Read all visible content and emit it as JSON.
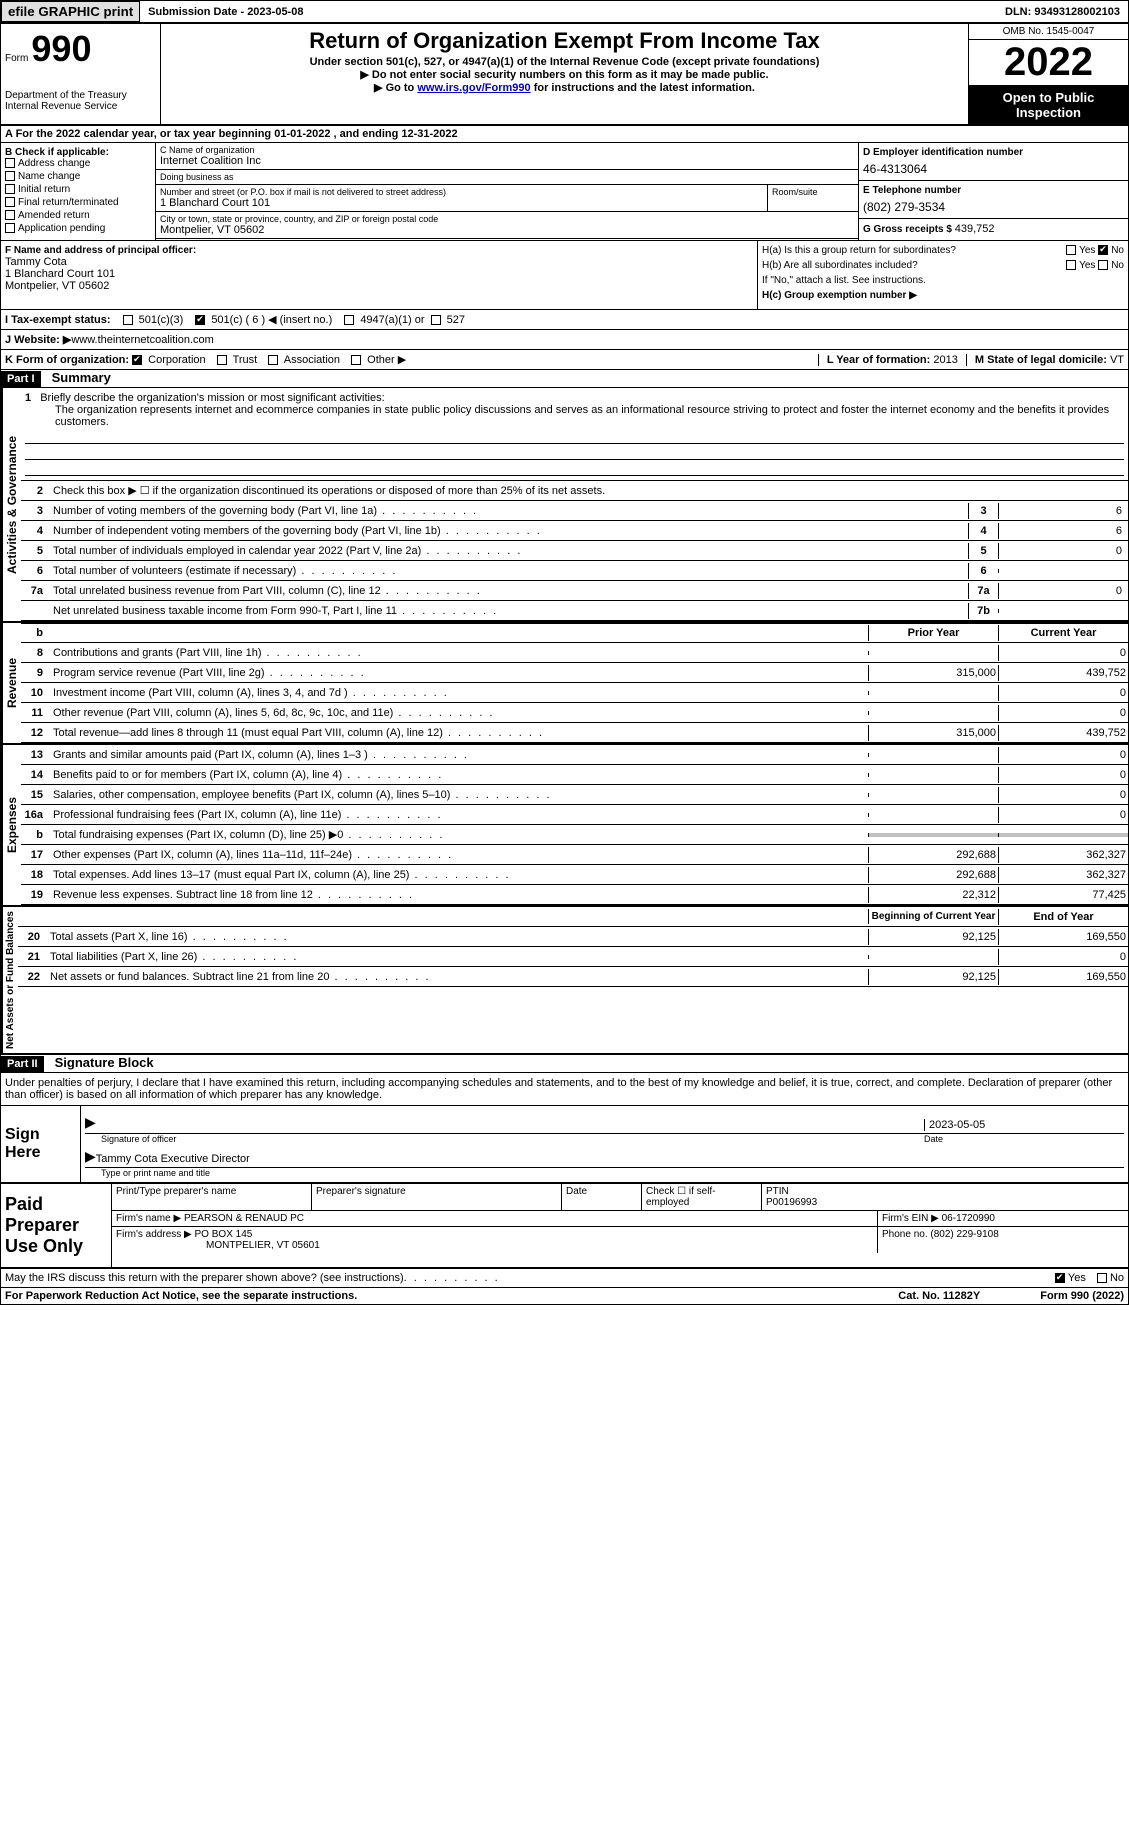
{
  "topbar": {
    "efile": "efile GRAPHIC print",
    "submission_label": "Submission Date - ",
    "submission_date": "2023-05-08",
    "dln_label": "DLN: ",
    "dln": "93493128002103"
  },
  "header": {
    "form_word": "Form",
    "form_num": "990",
    "dept": "Department of the Treasury",
    "irs": "Internal Revenue Service",
    "title": "Return of Organization Exempt From Income Tax",
    "subtitle": "Under section 501(c), 527, or 4947(a)(1) of the Internal Revenue Code (except private foundations)",
    "instr1": "▶ Do not enter social security numbers on this form as it may be made public.",
    "instr2_pre": "▶ Go to ",
    "instr2_link": "www.irs.gov/Form990",
    "instr2_post": " for instructions and the latest information.",
    "omb": "OMB No. 1545-0047",
    "year": "2022",
    "inspection": "Open to Public Inspection"
  },
  "period": {
    "text_a": "A For the 2022 calendar year, or tax year beginning ",
    "begin": "01-01-2022",
    "text_b": "   , and ending ",
    "end": "12-31-2022"
  },
  "section_b": {
    "header": "B Check if applicable:",
    "opts": [
      "Address change",
      "Name change",
      "Initial return",
      "Final return/terminated",
      "Amended return",
      "Application pending"
    ]
  },
  "section_c": {
    "name_label": "C Name of organization",
    "name": "Internet Coalition Inc",
    "dba_label": "Doing business as",
    "dba": "",
    "street_label": "Number and street (or P.O. box if mail is not delivered to street address)",
    "street": "1 Blanchard Court 101",
    "suite_label": "Room/suite",
    "suite": "",
    "city_label": "City or town, state or province, country, and ZIP or foreign postal code",
    "city": "Montpelier, VT  05602"
  },
  "section_d": {
    "ein_label": "D Employer identification number",
    "ein": "46-4313064",
    "phone_label": "E Telephone number",
    "phone": "(802) 279-3534",
    "gross_label": "G Gross receipts $ ",
    "gross": "439,752"
  },
  "section_f": {
    "label": "F  Name and address of principal officer:",
    "name": "Tammy Cota",
    "addr1": "1 Blanchard Court 101",
    "addr2": "Montpelier, VT  05602"
  },
  "section_h": {
    "ha_label": "H(a)  Is this a group return for subordinates?",
    "hb_label": "H(b)  Are all subordinates included?",
    "hb_note": "If \"No,\" attach a list. See instructions.",
    "hc_label": "H(c)  Group exemption number ▶",
    "yes": "Yes",
    "no": "No"
  },
  "section_i": {
    "label": "I    Tax-exempt status:",
    "c3": "501(c)(3)",
    "c_other": "501(c) ( 6 ) ◀ (insert no.)",
    "a1": "4947(a)(1) or",
    "s527": "527"
  },
  "section_j": {
    "label": "J   Website: ▶ ",
    "url": "www.theinternetcoalition.com"
  },
  "section_k": {
    "label": "K Form of organization: ",
    "corp": "Corporation",
    "trust": "Trust",
    "assoc": "Association",
    "other": "Other ▶"
  },
  "section_l": {
    "label": "L Year of formation: ",
    "year": "2013"
  },
  "section_m": {
    "label": "M State of legal domicile: ",
    "state": "VT"
  },
  "part1": {
    "header": "Part I",
    "title": "Summary",
    "vlabel1": "Activities & Governance",
    "vlabel2": "Revenue",
    "vlabel3": "Expenses",
    "vlabel4": "Net Assets or Fund Balances",
    "line1_label": "Briefly describe the organization's mission or most significant activities:",
    "line1_text": "The organization represents internet and ecommerce companies in state public policy discussions and serves as an informational resource striving to protect and foster the internet economy and the benefits it provides customers.",
    "line2": "Check this box ▶ ☐ if the organization discontinued its operations or disposed of more than 25% of its net assets.",
    "lines_gov": [
      {
        "n": "3",
        "t": "Number of voting members of the governing body (Part VI, line 1a)",
        "bn": "3",
        "v": "6"
      },
      {
        "n": "4",
        "t": "Number of independent voting members of the governing body (Part VI, line 1b)",
        "bn": "4",
        "v": "6"
      },
      {
        "n": "5",
        "t": "Total number of individuals employed in calendar year 2022 (Part V, line 2a)",
        "bn": "5",
        "v": "0"
      },
      {
        "n": "6",
        "t": "Total number of volunteers (estimate if necessary)",
        "bn": "6",
        "v": ""
      },
      {
        "n": "7a",
        "t": "Total unrelated business revenue from Part VIII, column (C), line 12",
        "bn": "7a",
        "v": "0"
      },
      {
        "n": "",
        "t": "Net unrelated business taxable income from Form 990-T, Part I, line 11",
        "bn": "7b",
        "v": ""
      }
    ],
    "prior_label": "Prior Year",
    "current_label": "Current Year",
    "lines_rev": [
      {
        "n": "8",
        "t": "Contributions and grants (Part VIII, line 1h)",
        "p": "",
        "c": "0"
      },
      {
        "n": "9",
        "t": "Program service revenue (Part VIII, line 2g)",
        "p": "315,000",
        "c": "439,752"
      },
      {
        "n": "10",
        "t": "Investment income (Part VIII, column (A), lines 3, 4, and 7d )",
        "p": "",
        "c": "0"
      },
      {
        "n": "11",
        "t": "Other revenue (Part VIII, column (A), lines 5, 6d, 8c, 9c, 10c, and 11e)",
        "p": "",
        "c": "0"
      },
      {
        "n": "12",
        "t": "Total revenue—add lines 8 through 11 (must equal Part VIII, column (A), line 12)",
        "p": "315,000",
        "c": "439,752"
      }
    ],
    "lines_exp": [
      {
        "n": "13",
        "t": "Grants and similar amounts paid (Part IX, column (A), lines 1–3 )",
        "p": "",
        "c": "0"
      },
      {
        "n": "14",
        "t": "Benefits paid to or for members (Part IX, column (A), line 4)",
        "p": "",
        "c": "0"
      },
      {
        "n": "15",
        "t": "Salaries, other compensation, employee benefits (Part IX, column (A), lines 5–10)",
        "p": "",
        "c": "0"
      },
      {
        "n": "16a",
        "t": "Professional fundraising fees (Part IX, column (A), line 11e)",
        "p": "",
        "c": "0"
      },
      {
        "n": "b",
        "t": "Total fundraising expenses (Part IX, column (D), line 25) ▶0",
        "p": "SHADE",
        "c": "SHADE"
      },
      {
        "n": "17",
        "t": "Other expenses (Part IX, column (A), lines 11a–11d, 11f–24e)",
        "p": "292,688",
        "c": "362,327"
      },
      {
        "n": "18",
        "t": "Total expenses. Add lines 13–17 (must equal Part IX, column (A), line 25)",
        "p": "292,688",
        "c": "362,327"
      },
      {
        "n": "19",
        "t": "Revenue less expenses. Subtract line 18 from line 12",
        "p": "22,312",
        "c": "77,425"
      }
    ],
    "begin_label": "Beginning of Current Year",
    "end_label": "End of Year",
    "lines_net": [
      {
        "n": "20",
        "t": "Total assets (Part X, line 16)",
        "p": "92,125",
        "c": "169,550"
      },
      {
        "n": "21",
        "t": "Total liabilities (Part X, line 26)",
        "p": "",
        "c": "0"
      },
      {
        "n": "22",
        "t": "Net assets or fund balances. Subtract line 21 from line 20",
        "p": "92,125",
        "c": "169,550"
      }
    ]
  },
  "part2": {
    "header": "Part II",
    "title": "Signature Block",
    "penalty": "Under penalties of perjury, I declare that I have examined this return, including accompanying schedules and statements, and to the best of my knowledge and belief, it is true, correct, and complete. Declaration of preparer (other than officer) is based on all information of which preparer has any knowledge.",
    "sign_here": "Sign Here",
    "sig_officer": "Signature of officer",
    "sig_date_label": "Date",
    "sig_date": "2023-05-05",
    "officer_name": "Tammy Cota  Executive Director",
    "name_title_label": "Type or print name and title"
  },
  "preparer": {
    "label": "Paid Preparer Use Only",
    "name_label": "Print/Type preparer's name",
    "sig_label": "Preparer's signature",
    "date_label": "Date",
    "check_label": "Check ☐ if self-employed",
    "ptin_label": "PTIN",
    "ptin": "P00196993",
    "firm_name_label": "Firm's name     ▶ ",
    "firm_name": "PEARSON & RENAUD PC",
    "firm_ein_label": "Firm's EIN ▶ ",
    "firm_ein": "06-1720990",
    "firm_addr_label": "Firm's address ▶ ",
    "firm_addr1": "PO BOX 145",
    "firm_addr2": "MONTPELIER, VT  05601",
    "phone_label": "Phone no. ",
    "phone": "(802) 229-9108"
  },
  "discuss": {
    "text": "May the IRS discuss this return with the preparer shown above? (see instructions)",
    "yes": "Yes",
    "no": "No"
  },
  "footer": {
    "left": "For Paperwork Reduction Act Notice, see the separate instructions.",
    "cat": "Cat. No. 11282Y",
    "right": "Form 990 (2022)"
  }
}
